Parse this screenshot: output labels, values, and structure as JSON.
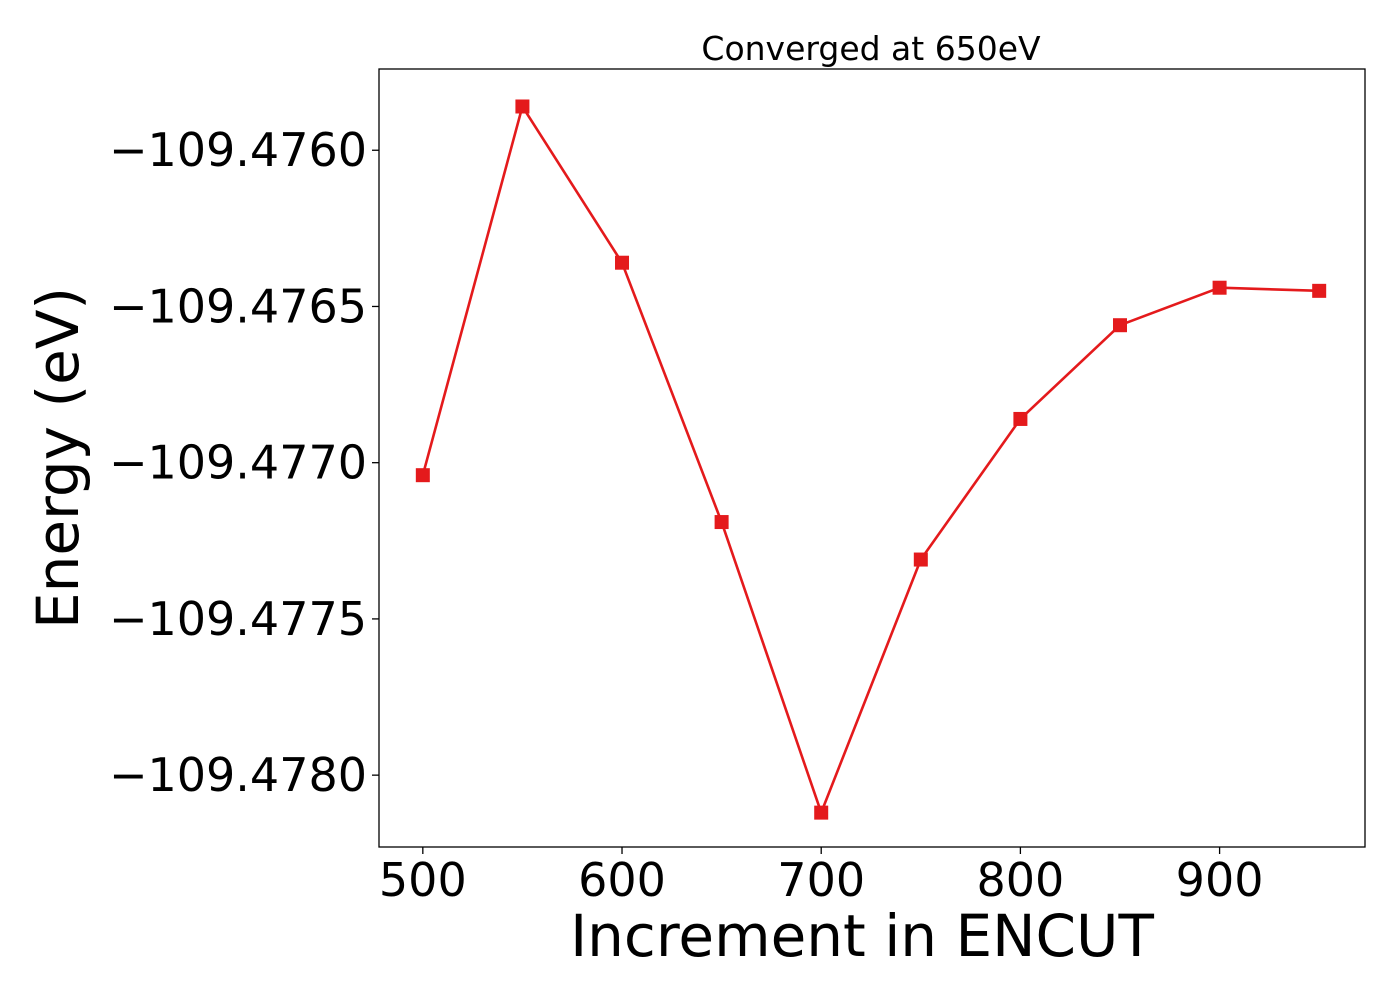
{
  "chart_data": {
    "type": "line",
    "title": "Converged at 650eV",
    "xlabel": "Increment in ENCUT",
    "ylabel": "Energy (eV)",
    "x": [
      500,
      550,
      600,
      650,
      700,
      750,
      800,
      850,
      900,
      950
    ],
    "series": [
      {
        "name": "",
        "color": "#e41a1c",
        "marker": "square",
        "values": [
          -109.47704,
          -109.47586,
          -109.47636,
          -109.47719,
          -109.47812,
          -109.47731,
          -109.47686,
          -109.47656,
          -109.47644,
          -109.47645
        ]
      }
    ],
    "xlim": [
      478,
      973
    ],
    "ylim": [
      -109.47823,
      -109.47574
    ],
    "xticks": [
      500,
      600,
      700,
      800,
      900
    ],
    "xtick_labels": [
      "500",
      "600",
      "700",
      "800",
      "900"
    ],
    "yticks": [
      -109.476,
      -109.4765,
      -109.477,
      -109.4775,
      -109.478
    ],
    "ytick_labels": [
      "−109.4760",
      "−109.4765",
      "−109.4770",
      "−109.4775",
      "−109.4780"
    ],
    "grid": false,
    "legend": "none"
  }
}
